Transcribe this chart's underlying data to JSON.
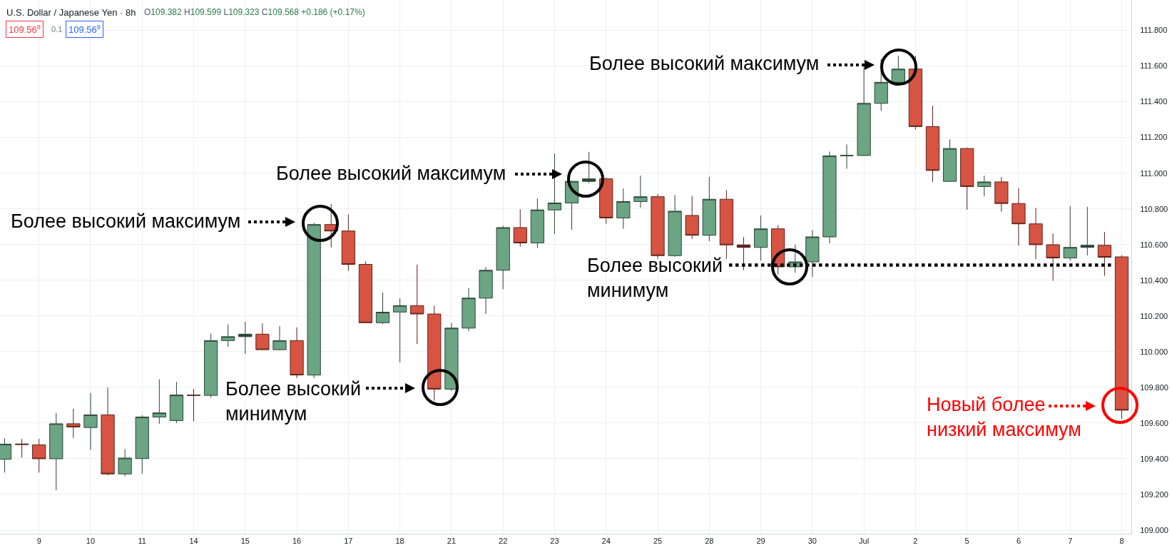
{
  "chart_data": {
    "type": "candlestick",
    "title": "U.S. Dollar / Japanese Yen · 8h",
    "subtitle": "O109.382 H109.599 L109.323 C109.568 +0.186 (+0.17%)",
    "categories": [
      null,
      null,
      "9",
      null,
      null,
      "10",
      null,
      null,
      "11",
      null,
      null,
      "14",
      null,
      null,
      "15",
      null,
      null,
      "16",
      null,
      null,
      "17",
      null,
      null,
      "18",
      null,
      null,
      "21",
      null,
      null,
      "22",
      null,
      null,
      "23",
      null,
      null,
      "24",
      null,
      null,
      "25",
      null,
      null,
      "28",
      null,
      null,
      "29",
      null,
      null,
      "30",
      null,
      null,
      "Jul",
      null,
      null,
      "2",
      null,
      null,
      "5",
      null,
      null,
      "6",
      null,
      null,
      "7",
      null,
      null,
      "8"
    ],
    "ohlc": [
      [
        109.397,
        109.515,
        109.323,
        109.482
      ],
      [
        109.483,
        109.511,
        109.407,
        109.48
      ],
      [
        109.478,
        109.511,
        109.323,
        109.4
      ],
      [
        109.4,
        109.657,
        109.224,
        109.596
      ],
      [
        109.596,
        109.68,
        109.518,
        109.578
      ],
      [
        109.575,
        109.769,
        109.45,
        109.646
      ],
      [
        109.646,
        109.799,
        109.307,
        109.315
      ],
      [
        109.315,
        109.454,
        109.302,
        109.404
      ],
      [
        109.401,
        109.643,
        109.316,
        109.634
      ],
      [
        109.634,
        109.845,
        109.596,
        109.657
      ],
      [
        109.614,
        109.831,
        109.6,
        109.757
      ],
      [
        109.757,
        109.791,
        109.61,
        109.755
      ],
      [
        109.755,
        110.101,
        109.742,
        110.062
      ],
      [
        110.062,
        110.153,
        110.027,
        110.084
      ],
      [
        110.084,
        110.167,
        109.987,
        110.098
      ],
      [
        110.098,
        110.158,
        110.008,
        110.011
      ],
      [
        110.011,
        110.143,
        110.008,
        110.062
      ],
      [
        110.062,
        110.136,
        109.852,
        109.869
      ],
      [
        109.869,
        110.722,
        109.852,
        110.712
      ],
      [
        110.712,
        110.826,
        110.584,
        110.676
      ],
      [
        110.676,
        110.769,
        110.453,
        110.489
      ],
      [
        110.489,
        110.506,
        110.16,
        110.162
      ],
      [
        110.162,
        110.331,
        110.155,
        110.221
      ],
      [
        110.222,
        110.299,
        109.94,
        110.258
      ],
      [
        110.258,
        110.488,
        110.043,
        110.211
      ],
      [
        110.211,
        110.258,
        109.725,
        109.79
      ],
      [
        109.79,
        110.161,
        109.78,
        110.132
      ],
      [
        110.132,
        110.356,
        110.115,
        110.3
      ],
      [
        110.3,
        110.474,
        110.211,
        110.456
      ],
      [
        110.456,
        110.705,
        110.35,
        110.695
      ],
      [
        110.695,
        110.797,
        110.588,
        110.609
      ],
      [
        110.609,
        110.858,
        110.581,
        110.794
      ],
      [
        110.794,
        111.11,
        110.659,
        110.833
      ],
      [
        110.833,
        110.958,
        110.683,
        110.954
      ],
      [
        110.954,
        111.119,
        110.944,
        110.968
      ],
      [
        110.968,
        110.975,
        110.716,
        110.749
      ],
      [
        110.749,
        110.914,
        110.688,
        110.841
      ],
      [
        110.841,
        110.986,
        110.806,
        110.868
      ],
      [
        110.868,
        110.883,
        110.521,
        110.538
      ],
      [
        110.538,
        110.877,
        110.531,
        110.787
      ],
      [
        110.763,
        110.873,
        110.631,
        110.652
      ],
      [
        110.652,
        110.979,
        110.619,
        110.854
      ],
      [
        110.854,
        110.905,
        110.52,
        110.598
      ],
      [
        110.598,
        110.642,
        110.456,
        110.584
      ],
      [
        110.584,
        110.763,
        110.51,
        110.688
      ],
      [
        110.688,
        110.709,
        110.432,
        110.475
      ],
      [
        110.475,
        110.599,
        110.442,
        110.503
      ],
      [
        110.503,
        110.681,
        110.418,
        110.643
      ],
      [
        110.643,
        111.121,
        110.607,
        111.097
      ],
      [
        111.097,
        111.161,
        111.025,
        111.099
      ],
      [
        111.099,
        111.597,
        111.097,
        111.391
      ],
      [
        111.391,
        111.64,
        111.349,
        111.509
      ],
      [
        111.509,
        111.657,
        111.498,
        111.583
      ],
      [
        111.583,
        111.657,
        111.245,
        111.261
      ],
      [
        111.261,
        111.377,
        110.951,
        111.015
      ],
      [
        110.954,
        111.189,
        110.951,
        111.138
      ],
      [
        111.138,
        111.143,
        110.795,
        110.925
      ],
      [
        110.925,
        110.986,
        110.87,
        110.951
      ],
      [
        110.951,
        110.979,
        110.785,
        110.83
      ],
      [
        110.83,
        110.915,
        110.593,
        110.716
      ],
      [
        110.716,
        110.805,
        110.518,
        110.599
      ],
      [
        110.599,
        110.662,
        110.397,
        110.525
      ],
      [
        110.525,
        110.816,
        110.511,
        110.584
      ],
      [
        110.584,
        110.812,
        110.539,
        110.596
      ],
      [
        110.596,
        110.671,
        110.425,
        110.529
      ],
      [
        110.531,
        110.54,
        109.624,
        109.672
      ]
    ],
    "colors": [
      "#6ba583",
      "#5a231b",
      "#d75442",
      "#6ba583",
      "#d75442",
      "#6ba583",
      "#d75442",
      "#6ba583",
      "#6ba583",
      "#6ba583",
      "#6ba583",
      "#5a231b",
      "#6ba583",
      "#6ba583",
      "#2c4537",
      "#d75442",
      "#6ba583",
      "#d75442",
      "#6ba583",
      "#d75442",
      "#d75442",
      "#d75442",
      "#6ba583",
      "#6ba583",
      "#d75442",
      "#d75442",
      "#6ba583",
      "#6ba583",
      "#6ba583",
      "#6ba583",
      "#d75442",
      "#6ba583",
      "#6ba583",
      "#6ba583",
      "#2c4537",
      "#d75442",
      "#6ba583",
      "#6ba583",
      "#d75442",
      "#6ba583",
      "#d75442",
      "#6ba583",
      "#d75442",
      "#5a231b",
      "#6ba583",
      "#d75442",
      "#6ba583",
      "#6ba583",
      "#6ba583",
      "#2c4537",
      "#6ba583",
      "#6ba583",
      "#6ba583",
      "#d75442",
      "#d75442",
      "#6ba583",
      "#d75442",
      "#6ba583",
      "#d75442",
      "#d75442",
      "#d75442",
      "#d75442",
      "#6ba583",
      "#2c4537",
      "#d75442",
      "#d75442"
    ],
    "ylim": [
      108.98,
      111.97
    ],
    "yticks": [
      {
        "value": 109.0,
        "label": "109.000"
      },
      {
        "value": 109.2,
        "label": "109.200"
      },
      {
        "value": 109.4,
        "label": "109.400"
      },
      {
        "value": 109.6,
        "label": "109.600"
      },
      {
        "value": 109.8,
        "label": "109.800"
      },
      {
        "value": 110.0,
        "label": "110.000"
      },
      {
        "value": 110.2,
        "label": "110.200"
      },
      {
        "value": 110.4,
        "label": "110.400"
      },
      {
        "value": 110.6,
        "label": "110.600"
      },
      {
        "value": 110.8,
        "label": "110.800"
      },
      {
        "value": 111.0,
        "label": "111.000"
      },
      {
        "value": 111.2,
        "label": "111.200"
      },
      {
        "value": 111.4,
        "label": "111.400"
      },
      {
        "value": 111.6,
        "label": "111.600"
      },
      {
        "value": 111.8,
        "label": "111.800"
      }
    ],
    "grid": true,
    "ref_lines": [
      {
        "axis": "y",
        "value": 110.485,
        "color": "#000000",
        "line_style": "dotted"
      }
    ],
    "annotations": [
      "109.56$^{8}$",
      "0.1",
      "109.56$^{9}$",
      "Более высокий максимум",
      "Более высокий\nминимум",
      "Более высокий максимум",
      "Более высокий максимум",
      "Более высокий\nминимум",
      "Новый более\nнизкий максимум"
    ]
  }
}
